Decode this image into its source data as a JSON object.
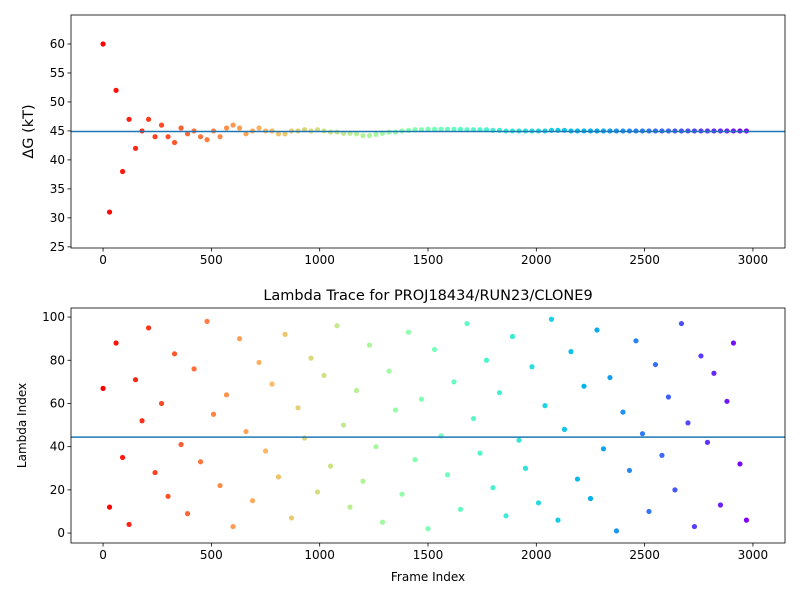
{
  "chart_data": [
    {
      "type": "scatter",
      "ylabel": "ΔG (kT)",
      "colormap": "rainbow_r",
      "hline": 44.9,
      "hline_color": "#1f77b4",
      "xlim": [
        -148,
        3148
      ],
      "ylim": [
        24.8,
        65
      ],
      "xticks": [
        0,
        500,
        1000,
        1500,
        2000,
        2500,
        3000
      ],
      "yticks": [
        25,
        30,
        35,
        40,
        45,
        50,
        55,
        60
      ],
      "x": [
        0,
        30,
        60,
        90,
        120,
        150,
        180,
        210,
        240,
        270,
        300,
        330,
        360,
        390,
        420,
        450,
        480,
        510,
        540,
        570,
        600,
        630,
        660,
        690,
        720,
        750,
        780,
        810,
        840,
        870,
        900,
        930,
        960,
        990,
        1020,
        1050,
        1080,
        1110,
        1140,
        1170,
        1200,
        1230,
        1260,
        1290,
        1320,
        1350,
        1380,
        1410,
        1440,
        1470,
        1500,
        1530,
        1560,
        1590,
        1620,
        1650,
        1680,
        1710,
        1740,
        1770,
        1800,
        1830,
        1860,
        1890,
        1920,
        1950,
        1980,
        2010,
        2040,
        2070,
        2100,
        2130,
        2160,
        2190,
        2220,
        2250,
        2280,
        2310,
        2340,
        2370,
        2400,
        2430,
        2460,
        2490,
        2520,
        2550,
        2580,
        2610,
        2640,
        2670,
        2700,
        2730,
        2760,
        2790,
        2820,
        2850,
        2880,
        2910,
        2940,
        2970
      ],
      "values": [
        60,
        31,
        52,
        38,
        47,
        42,
        45,
        47,
        44,
        46,
        44,
        43,
        45.5,
        44.5,
        45,
        44,
        43.5,
        45,
        44,
        45.5,
        46,
        45.5,
        44.5,
        45,
        45.5,
        45,
        45,
        44.5,
        44.5,
        45,
        45,
        45.2,
        45,
        45.2,
        45,
        44.8,
        44.8,
        44.6,
        44.6,
        44.5,
        44.2,
        44.2,
        44.4,
        44.6,
        44.8,
        44.8,
        45,
        45.1,
        45.2,
        45.2,
        45.3,
        45.3,
        45.3,
        45.3,
        45.3,
        45.3,
        45.2,
        45.2,
        45.2,
        45.2,
        45.1,
        45.1,
        45,
        45,
        45,
        45,
        45,
        45,
        45,
        45.1,
        45.1,
        45.1,
        45,
        45,
        45,
        45,
        45,
        45,
        45,
        45,
        45,
        45,
        45,
        45,
        45,
        45,
        45,
        45,
        45,
        45,
        45,
        45,
        45,
        45,
        45,
        45,
        45,
        45,
        45,
        45
      ]
    },
    {
      "type": "scatter",
      "title": "Lambda Trace for PROJ18434/RUN23/CLONE9",
      "xlabel": "Frame Index",
      "ylabel": "Lambda Index",
      "colormap": "rainbow_r",
      "hline": 44.4,
      "hline_color": "#1f77b4",
      "xlim": [
        -148,
        3148
      ],
      "ylim": [
        -4.6,
        104.2
      ],
      "xticks": [
        0,
        500,
        1000,
        1500,
        2000,
        2500,
        3000
      ],
      "yticks": [
        0,
        20,
        40,
        60,
        80,
        100
      ],
      "x": [
        0,
        30,
        60,
        90,
        120,
        150,
        180,
        210,
        240,
        270,
        300,
        330,
        360,
        390,
        420,
        450,
        480,
        510,
        540,
        570,
        600,
        630,
        660,
        690,
        720,
        750,
        780,
        810,
        840,
        870,
        900,
        930,
        960,
        990,
        1020,
        1050,
        1080,
        1110,
        1140,
        1170,
        1200,
        1230,
        1260,
        1290,
        1320,
        1350,
        1380,
        1410,
        1440,
        1470,
        1500,
        1530,
        1560,
        1590,
        1620,
        1650,
        1680,
        1710,
        1740,
        1770,
        1800,
        1830,
        1860,
        1890,
        1920,
        1950,
        1980,
        2010,
        2040,
        2070,
        2100,
        2130,
        2160,
        2190,
        2220,
        2250,
        2280,
        2310,
        2340,
        2370,
        2400,
        2430,
        2460,
        2490,
        2520,
        2550,
        2580,
        2610,
        2640,
        2670,
        2700,
        2730,
        2760,
        2790,
        2820,
        2850,
        2880,
        2910,
        2940,
        2970
      ],
      "values": [
        67,
        12,
        88,
        35,
        4,
        71,
        52,
        95,
        28,
        60,
        17,
        83,
        41,
        9,
        76,
        33,
        98,
        55,
        22,
        64,
        3,
        90,
        47,
        15,
        79,
        38,
        69,
        26,
        92,
        7,
        58,
        44,
        81,
        19,
        73,
        31,
        96,
        50,
        12,
        66,
        24,
        87,
        40,
        5,
        75,
        57,
        18,
        93,
        34,
        62,
        2,
        85,
        45,
        27,
        70,
        11,
        97,
        53,
        37,
        80,
        21,
        65,
        8,
        91,
        43,
        30,
        77,
        14,
        59,
        99,
        6,
        48,
        84,
        25,
        68,
        16,
        94,
        39,
        72,
        1,
        56,
        29,
        89,
        46,
        10,
        78,
        36,
        63,
        20,
        97,
        51,
        3,
        82,
        42,
        74,
        13,
        61,
        88,
        32,
        6
      ]
    }
  ]
}
